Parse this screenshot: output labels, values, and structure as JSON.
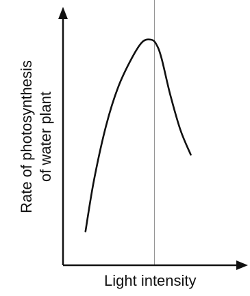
{
  "chart_data": {
    "type": "line",
    "xlabel": "Light intensity",
    "ylabel": [
      "Rate of photosynthesis",
      "of water plant"
    ],
    "x_ticks": [],
    "y_ticks": [],
    "grid": false,
    "xlim": [
      0,
      10
    ],
    "ylim": [
      0,
      10
    ],
    "series": [
      {
        "x": [
          1.3,
          1.8,
          2.5,
          3.2,
          4.0,
          4.6,
          5.1,
          5.4,
          5.7,
          6.2,
          6.8,
          7.4
        ],
        "y": [
          1.5,
          3.8,
          6.2,
          7.9,
          9.2,
          9.9,
          10.0,
          9.8,
          9.2,
          7.6,
          6.0,
          4.9
        ]
      }
    ],
    "vertical_reference_line": {
      "x": 5.3
    }
  },
  "colors": {
    "axes": "#111111",
    "curve": "#111111",
    "reference_line": "#888888",
    "text": "#111111"
  }
}
